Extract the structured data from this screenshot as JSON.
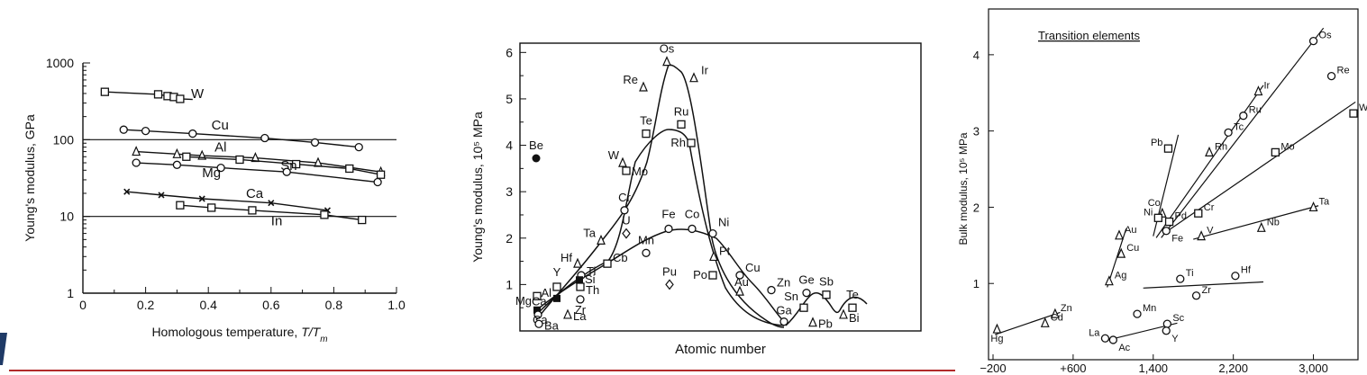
{
  "chart_data": [
    {
      "type": "line",
      "xlabel": "Homologous temperature, T/Tm",
      "ylabel": "Young's modulus, GPa",
      "yscale": "log",
      "xlim": [
        0,
        1.0
      ],
      "ylim": [
        1,
        1000
      ],
      "x_ticks": [
        "0",
        "0.2",
        "0.4",
        "0.6",
        "0.8",
        "1.0"
      ],
      "y_ticks": [
        "1",
        "10",
        "100",
        "1000"
      ],
      "grid": "horizontal lines at 10 and 100",
      "series": [
        {
          "name": "W",
          "marker": "square",
          "x": [
            0.07,
            0.24,
            0.27,
            0.29,
            0.31
          ],
          "y": [
            420,
            390,
            370,
            360,
            340
          ]
        },
        {
          "name": "Cu",
          "marker": "circle",
          "x": [
            0.13,
            0.2,
            0.35,
            0.58,
            0.74,
            0.88
          ],
          "y": [
            135,
            130,
            120,
            105,
            92,
            80
          ]
        },
        {
          "name": "Al",
          "marker": "triangle",
          "x": [
            0.17,
            0.3,
            0.38,
            0.55,
            0.75,
            0.95
          ],
          "y": [
            70,
            65,
            62,
            58,
            50,
            38
          ]
        },
        {
          "name": "Sn",
          "marker": "square",
          "x": [
            0.33,
            0.5,
            0.68,
            0.85,
            0.95
          ],
          "y": [
            60,
            55,
            48,
            42,
            35
          ]
        },
        {
          "name": "Mg",
          "marker": "circle",
          "x": [
            0.17,
            0.3,
            0.44,
            0.65,
            0.94
          ],
          "y": [
            50,
            47,
            43,
            38,
            28
          ]
        },
        {
          "name": "Ca",
          "marker": "x",
          "x": [
            0.14,
            0.25,
            0.38,
            0.6,
            0.78
          ],
          "y": [
            21,
            19,
            17,
            15,
            12
          ]
        },
        {
          "name": "In",
          "marker": "square",
          "x": [
            0.31,
            0.41,
            0.54,
            0.77,
            0.89
          ],
          "y": [
            14,
            13,
            12,
            10.5,
            9
          ]
        }
      ]
    },
    {
      "type": "scatter",
      "xlabel": "Atomic number",
      "ylabel": "Young's modulus, 10⁵ MPa",
      "ylim": [
        0,
        6.2
      ],
      "y_ticks": [
        "1",
        "2",
        "3",
        "4",
        "5",
        "6"
      ],
      "points": [
        {
          "label": "Os",
          "y": 5.8,
          "marker": "triangle"
        },
        {
          "label": "Ir",
          "y": 5.45,
          "marker": "triangle"
        },
        {
          "label": "Re",
          "y": 5.25,
          "marker": "triangle"
        },
        {
          "label": "Ru",
          "y": 4.45,
          "marker": "square"
        },
        {
          "label": "Te",
          "y": 4.25,
          "marker": "square"
        },
        {
          "label": "Rh",
          "y": 4.05,
          "marker": "square"
        },
        {
          "label": "Be",
          "y": 3.72,
          "marker": "filled-circle"
        },
        {
          "label": "W",
          "y": 3.62,
          "marker": "triangle"
        },
        {
          "label": "Mo",
          "y": 3.45,
          "marker": "square"
        },
        {
          "label": "Cr",
          "y": 2.6,
          "marker": "circle"
        },
        {
          "label": "U",
          "y": 2.1,
          "marker": "diamond"
        },
        {
          "label": "Fe",
          "y": 2.2,
          "marker": "circle"
        },
        {
          "label": "Co",
          "y": 2.2,
          "marker": "circle"
        },
        {
          "label": "Ni",
          "y": 2.1,
          "marker": "circle"
        },
        {
          "label": "Ta",
          "y": 1.95,
          "marker": "triangle"
        },
        {
          "label": "Mn",
          "y": 1.68,
          "marker": "circle"
        },
        {
          "label": "Pt",
          "y": 1.6,
          "marker": "triangle"
        },
        {
          "label": "Hf",
          "y": 1.45,
          "marker": "triangle"
        },
        {
          "label": "Cb",
          "y": 1.45,
          "marker": "square"
        },
        {
          "label": "Ti",
          "y": 1.2,
          "marker": "circle"
        },
        {
          "label": "Cu",
          "y": 1.2,
          "marker": "circle"
        },
        {
          "label": "Po",
          "y": 1.2,
          "marker": "square"
        },
        {
          "label": "Si",
          "y": 1.1,
          "marker": "filled-square"
        },
        {
          "label": "Pu",
          "y": 1.0,
          "marker": "diamond"
        },
        {
          "label": "Y",
          "y": 0.95,
          "marker": "square"
        },
        {
          "label": "Th",
          "y": 0.95,
          "marker": "square"
        },
        {
          "label": "Au",
          "y": 0.85,
          "marker": "triangle"
        },
        {
          "label": "Zn",
          "y": 0.88,
          "marker": "circle"
        },
        {
          "label": "Ge",
          "y": 0.82,
          "marker": "circle"
        },
        {
          "label": "Sb",
          "y": 0.78,
          "marker": "square"
        },
        {
          "label": "Ca",
          "y": 0.75,
          "marker": "square"
        },
        {
          "label": "Al",
          "y": 0.7,
          "marker": "filled-square"
        },
        {
          "label": "Zr",
          "y": 0.68,
          "marker": "circle"
        },
        {
          "label": "Mg",
          "y": 0.45,
          "marker": "filled-square"
        },
        {
          "label": "Te",
          "y": 0.5,
          "marker": "square"
        },
        {
          "label": "Sn",
          "y": 0.5,
          "marker": "square"
        },
        {
          "label": "Ca",
          "y": 0.35,
          "marker": "circle"
        },
        {
          "label": "La",
          "y": 0.35,
          "marker": "triangle"
        },
        {
          "label": "Bi",
          "y": 0.35,
          "marker": "triangle"
        },
        {
          "label": "Ga",
          "y": 0.2,
          "marker": "circle"
        },
        {
          "label": "Pb",
          "y": 0.18,
          "marker": "triangle"
        },
        {
          "label": "Ba",
          "y": 0.15,
          "marker": "circle"
        }
      ]
    },
    {
      "type": "scatter",
      "title": "Transition elements",
      "xlabel": "",
      "ylabel": "Bulk modulus, 10⁵ MPa",
      "xlim": [
        -200,
        3400
      ],
      "ylim": [
        0,
        4.6
      ],
      "x_ticks": [
        "−200",
        "+600",
        "1,400",
        "2,200",
        "3,000"
      ],
      "y_ticks": [
        "1",
        "2",
        "3",
        "4"
      ],
      "points": [
        {
          "label": "Os",
          "x": 3000,
          "y": 4.18,
          "marker": "circle"
        },
        {
          "label": "Re",
          "x": 3180,
          "y": 3.72,
          "marker": "circle"
        },
        {
          "label": "Ir",
          "x": 2450,
          "y": 3.52,
          "marker": "triangle"
        },
        {
          "label": "W",
          "x": 3400,
          "y": 3.23,
          "marker": "square"
        },
        {
          "label": "Ru",
          "x": 2300,
          "y": 3.2,
          "marker": "circle"
        },
        {
          "label": "Tc",
          "x": 2150,
          "y": 2.98,
          "marker": "circle"
        },
        {
          "label": "Pb",
          "x": 1550,
          "y": 2.77,
          "marker": "square"
        },
        {
          "label": "Rh",
          "x": 1960,
          "y": 2.72,
          "marker": "triangle"
        },
        {
          "label": "Mo",
          "x": 2620,
          "y": 2.72,
          "marker": "square"
        },
        {
          "label": "Ta",
          "x": 3000,
          "y": 2.0,
          "marker": "triangle"
        },
        {
          "label": "Co",
          "x": 1490,
          "y": 1.92,
          "marker": "triangle"
        },
        {
          "label": "Cr",
          "x": 1850,
          "y": 1.92,
          "marker": "square"
        },
        {
          "label": "Ni",
          "x": 1450,
          "y": 1.86,
          "marker": "square"
        },
        {
          "label": "Pd",
          "x": 1560,
          "y": 1.81,
          "marker": "square"
        },
        {
          "label": "Nb",
          "x": 2480,
          "y": 1.73,
          "marker": "triangle"
        },
        {
          "label": "Fe",
          "x": 1530,
          "y": 1.69,
          "marker": "circle"
        },
        {
          "label": "V",
          "x": 1880,
          "y": 1.62,
          "marker": "triangle"
        },
        {
          "label": "Au",
          "x": 1060,
          "y": 1.63,
          "marker": "triangle"
        },
        {
          "label": "Cu",
          "x": 1080,
          "y": 1.39,
          "marker": "triangle"
        },
        {
          "label": "Ti",
          "x": 1670,
          "y": 1.06,
          "marker": "circle"
        },
        {
          "label": "Hf",
          "x": 2220,
          "y": 1.1,
          "marker": "circle"
        },
        {
          "label": "Ag",
          "x": 960,
          "y": 1.03,
          "marker": "triangle"
        },
        {
          "label": "Zr",
          "x": 1830,
          "y": 0.84,
          "marker": "circle"
        },
        {
          "label": "Mn",
          "x": 1240,
          "y": 0.6,
          "marker": "circle"
        },
        {
          "label": "Zn",
          "x": 420,
          "y": 0.6,
          "marker": "triangle"
        },
        {
          "label": "Cd",
          "x": 320,
          "y": 0.48,
          "marker": "triangle"
        },
        {
          "label": "Sc",
          "x": 1540,
          "y": 0.47,
          "marker": "circle"
        },
        {
          "label": "Hg",
          "x": -160,
          "y": 0.4,
          "marker": "triangle"
        },
        {
          "label": "Y",
          "x": 1530,
          "y": 0.38,
          "marker": "circle"
        },
        {
          "label": "La",
          "x": 920,
          "y": 0.28,
          "marker": "circle"
        },
        {
          "label": "Ac",
          "x": 1000,
          "y": 0.26,
          "marker": "circle"
        }
      ]
    }
  ],
  "colors": {
    "ink": "#111111",
    "footer_line": "#b22a2a",
    "corner_mark": "#1f3a66"
  }
}
